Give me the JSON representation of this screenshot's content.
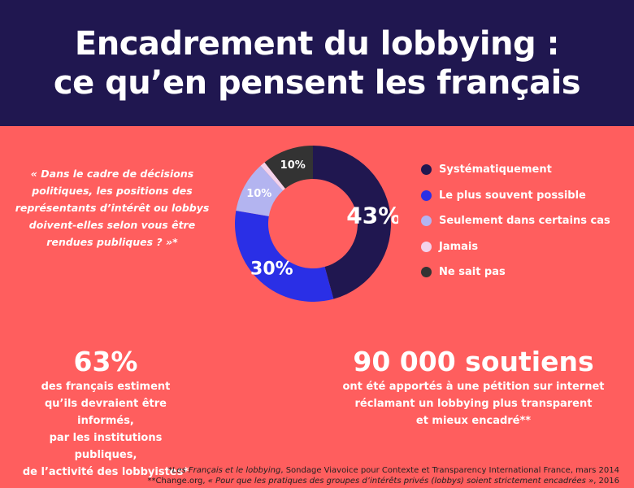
{
  "header": {
    "title_line1": "Encadrement du lobbying :",
    "title_line2": "ce qu’en pensent les français"
  },
  "question": "« Dans le cadre de décisions politiques, les positions des représentants d’intérêt ou lobbys doivent-elles selon vous être rendues publiques ? »*",
  "chart_data": {
    "type": "pie",
    "donut": true,
    "categories": [
      "Systématiquement",
      "Le plus souvent possible",
      "Seulement dans certains cas",
      "Jamais",
      "Ne sait pas"
    ],
    "values": [
      43,
      30,
      10,
      1,
      10
    ],
    "labels": [
      "43%",
      "30%",
      "10%",
      "",
      "10%"
    ],
    "colors": [
      "#201750",
      "#2a2fe6",
      "#b3b4f0",
      "#f3d3ec",
      "#333333"
    ],
    "legend_position": "right"
  },
  "stat_left": {
    "big": "63%",
    "line1": "des français estiment",
    "line2": "qu’ils devraient être informés,",
    "line3": "par les institutions publiques,",
    "line4": "de l’activité des lobbyistes*"
  },
  "stat_right": {
    "big": "90 000 soutiens",
    "line1": "ont été apportés à une pétition sur internet",
    "line2": "réclamant un lobbying plus transparent",
    "line3": "et mieux encadré**"
  },
  "footnotes": {
    "note1_title": "Les Français et le lobbying",
    "note1_rest": ", Sondage Viavoice pour Contexte et Transparency International France, mars 2014",
    "note1_prefix": "*",
    "note2_prefix": "**Change.org, ",
    "note2_title": "« Pour que les pratiques des groupes d’intérêts privés (lobbys) soient strictement encadrées »",
    "note2_rest": ", 2016"
  }
}
